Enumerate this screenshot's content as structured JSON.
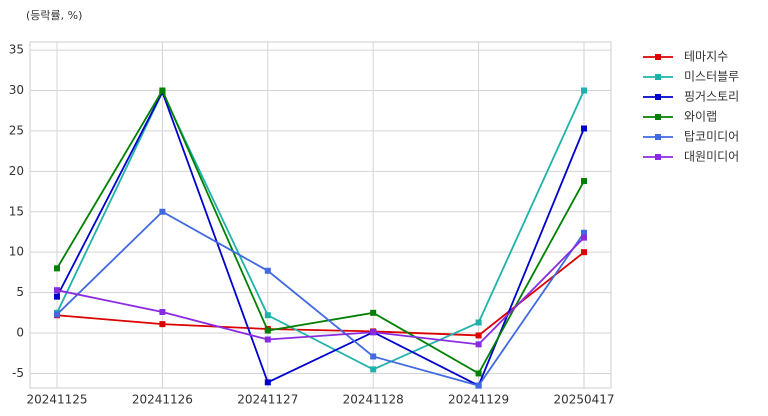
{
  "chart_data": {
    "type": "line",
    "y_label": "(등락률, %)",
    "categories": [
      "20241125",
      "20241126",
      "20241127",
      "20241128",
      "20241129",
      "20250417"
    ],
    "series": [
      {
        "name": "테마지수",
        "color": "#dd0000",
        "values": [
          2.2,
          1.1,
          0.5,
          0.2,
          -0.3,
          10
        ]
      },
      {
        "name": "미스터블루",
        "color": "#20b2aa",
        "values": [
          2.5,
          29.8,
          2.2,
          -4.5,
          1.3,
          30
        ]
      },
      {
        "name": "핑거스토리",
        "color": "#0000cd",
        "values": [
          4.5,
          29.8,
          -6.1,
          0.1,
          -6.5,
          25.3
        ]
      },
      {
        "name": "와이랩",
        "color": "#008000",
        "values": [
          8,
          30,
          0.3,
          2.5,
          -5,
          18.8
        ]
      },
      {
        "name": "탑코미디어",
        "color": "#4169e1",
        "values": [
          2.3,
          15,
          7.7,
          -2.9,
          -6.5,
          12.4
        ]
      },
      {
        "name": "대원미디어",
        "color": "#8a2be2",
        "values": [
          5.3,
          2.6,
          -0.8,
          0.1,
          -1.4,
          11.8
        ]
      }
    ],
    "ylim": [
      -6.8,
      36
    ],
    "yticks": [
      -5,
      0,
      5,
      10,
      15,
      20,
      25,
      30,
      35
    ],
    "grid": true,
    "legend": "outside-right"
  }
}
